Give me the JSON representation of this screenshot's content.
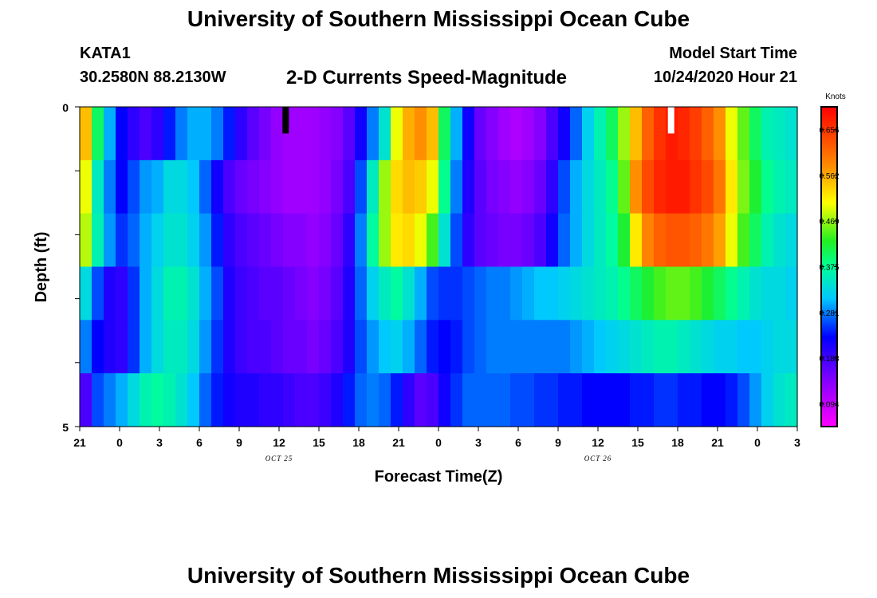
{
  "header": {
    "title": "University of Southern Mississippi Ocean Cube",
    "station": "KATA1",
    "coords": "30.2580N 88.2130W",
    "subtitle": "2-D Currents Speed-Magnitude",
    "model_label": "Model Start Time",
    "model_time": "10/24/2020 Hour 21"
  },
  "footer": {
    "title": "University of Southern Mississippi Ocean Cube"
  },
  "chart_data": {
    "type": "heatmap",
    "xlabel": "Forecast Time(Z)",
    "ylabel": "Depth (ft)",
    "x_tick_labels": [
      "21",
      "0",
      "3",
      "6",
      "9",
      "12",
      "15",
      "18",
      "21",
      "0",
      "3",
      "6",
      "9",
      "12",
      "15",
      "18",
      "21",
      "0",
      "3"
    ],
    "x_range_hours": [
      0,
      54
    ],
    "date_labels": [
      {
        "text": "OCT 25",
        "hour": 15
      },
      {
        "text": "OCT 26",
        "hour": 39
      }
    ],
    "y_tick_labels": [
      "0",
      "5"
    ],
    "y_range": [
      0,
      5
    ],
    "colorbar": {
      "label": "Knots",
      "min": 0.047,
      "max": 0.703,
      "ticks": [
        "0.656",
        "0.562",
        "0.469",
        "0.375",
        "0.281",
        "0.188",
        "0.094"
      ]
    },
    "column_hours": 1,
    "max_markers": [
      {
        "hour": 15.5,
        "row": 0,
        "color": "#000000"
      },
      {
        "hour": 44.5,
        "row": 0,
        "color": "#ffffff"
      }
    ],
    "speed_knots_by_depth_layer": [
      [
        0.55,
        0.4,
        0.3,
        0.23,
        0.2,
        0.18,
        0.2,
        0.24,
        0.28,
        0.3,
        0.3,
        0.28,
        0.24,
        0.2,
        0.17,
        0.15,
        0.13,
        0.12,
        0.12,
        0.12,
        0.13,
        0.14,
        0.17,
        0.22,
        0.28,
        0.34,
        0.5,
        0.56,
        0.58,
        0.55,
        0.4,
        0.3,
        0.22,
        0.16,
        0.14,
        0.12,
        0.11,
        0.12,
        0.14,
        0.18,
        0.22,
        0.27,
        0.32,
        0.36,
        0.4,
        0.47,
        0.55,
        0.62,
        0.66,
        0.68,
        0.67,
        0.65,
        0.62,
        0.58,
        0.5,
        0.45,
        0.4,
        0.36,
        0.35,
        0.34
      ],
      [
        0.5,
        0.35,
        0.28,
        0.23,
        0.26,
        0.29,
        0.3,
        0.33,
        0.33,
        0.31,
        0.27,
        0.22,
        0.18,
        0.16,
        0.15,
        0.14,
        0.13,
        0.12,
        0.12,
        0.12,
        0.13,
        0.15,
        0.18,
        0.26,
        0.35,
        0.47,
        0.53,
        0.55,
        0.54,
        0.5,
        0.38,
        0.28,
        0.21,
        0.17,
        0.15,
        0.14,
        0.13,
        0.14,
        0.16,
        0.2,
        0.26,
        0.3,
        0.33,
        0.35,
        0.38,
        0.45,
        0.58,
        0.64,
        0.67,
        0.68,
        0.68,
        0.66,
        0.64,
        0.6,
        0.52,
        0.46,
        0.42,
        0.38,
        0.36,
        0.35
      ],
      [
        0.48,
        0.36,
        0.29,
        0.25,
        0.27,
        0.3,
        0.32,
        0.34,
        0.34,
        0.32,
        0.29,
        0.24,
        0.2,
        0.18,
        0.17,
        0.16,
        0.15,
        0.14,
        0.14,
        0.13,
        0.14,
        0.16,
        0.2,
        0.28,
        0.37,
        0.47,
        0.52,
        0.53,
        0.5,
        0.44,
        0.34,
        0.26,
        0.2,
        0.17,
        0.16,
        0.15,
        0.15,
        0.16,
        0.18,
        0.22,
        0.27,
        0.3,
        0.33,
        0.35,
        0.37,
        0.42,
        0.52,
        0.59,
        0.62,
        0.63,
        0.63,
        0.62,
        0.6,
        0.57,
        0.5,
        0.44,
        0.4,
        0.36,
        0.34,
        0.33
      ],
      [
        0.33,
        0.26,
        0.21,
        0.2,
        0.25,
        0.3,
        0.33,
        0.36,
        0.36,
        0.34,
        0.3,
        0.26,
        0.21,
        0.19,
        0.18,
        0.17,
        0.17,
        0.16,
        0.15,
        0.14,
        0.15,
        0.17,
        0.21,
        0.27,
        0.32,
        0.35,
        0.37,
        0.34,
        0.3,
        0.26,
        0.25,
        0.25,
        0.26,
        0.27,
        0.28,
        0.28,
        0.29,
        0.3,
        0.31,
        0.31,
        0.32,
        0.33,
        0.34,
        0.35,
        0.36,
        0.38,
        0.4,
        0.42,
        0.44,
        0.45,
        0.45,
        0.44,
        0.42,
        0.4,
        0.38,
        0.36,
        0.34,
        0.33,
        0.33,
        0.32
      ],
      [
        0.28,
        0.23,
        0.21,
        0.2,
        0.25,
        0.3,
        0.33,
        0.35,
        0.35,
        0.33,
        0.29,
        0.25,
        0.21,
        0.19,
        0.18,
        0.18,
        0.17,
        0.16,
        0.16,
        0.15,
        0.16,
        0.18,
        0.21,
        0.26,
        0.29,
        0.31,
        0.32,
        0.3,
        0.27,
        0.24,
        0.23,
        0.24,
        0.26,
        0.27,
        0.28,
        0.28,
        0.28,
        0.28,
        0.28,
        0.28,
        0.28,
        0.29,
        0.3,
        0.31,
        0.32,
        0.33,
        0.34,
        0.35,
        0.36,
        0.36,
        0.35,
        0.34,
        0.33,
        0.32,
        0.32,
        0.31,
        0.31,
        0.32,
        0.33,
        0.33
      ],
      [
        0.18,
        0.26,
        0.28,
        0.3,
        0.33,
        0.36,
        0.37,
        0.36,
        0.34,
        0.31,
        0.27,
        0.24,
        0.22,
        0.21,
        0.21,
        0.2,
        0.2,
        0.19,
        0.18,
        0.18,
        0.19,
        0.21,
        0.24,
        0.27,
        0.28,
        0.27,
        0.24,
        0.2,
        0.17,
        0.18,
        0.22,
        0.25,
        0.27,
        0.27,
        0.27,
        0.27,
        0.26,
        0.26,
        0.25,
        0.25,
        0.24,
        0.24,
        0.23,
        0.23,
        0.23,
        0.23,
        0.24,
        0.24,
        0.25,
        0.25,
        0.24,
        0.24,
        0.23,
        0.23,
        0.24,
        0.26,
        0.29,
        0.32,
        0.34,
        0.35
      ]
    ]
  }
}
